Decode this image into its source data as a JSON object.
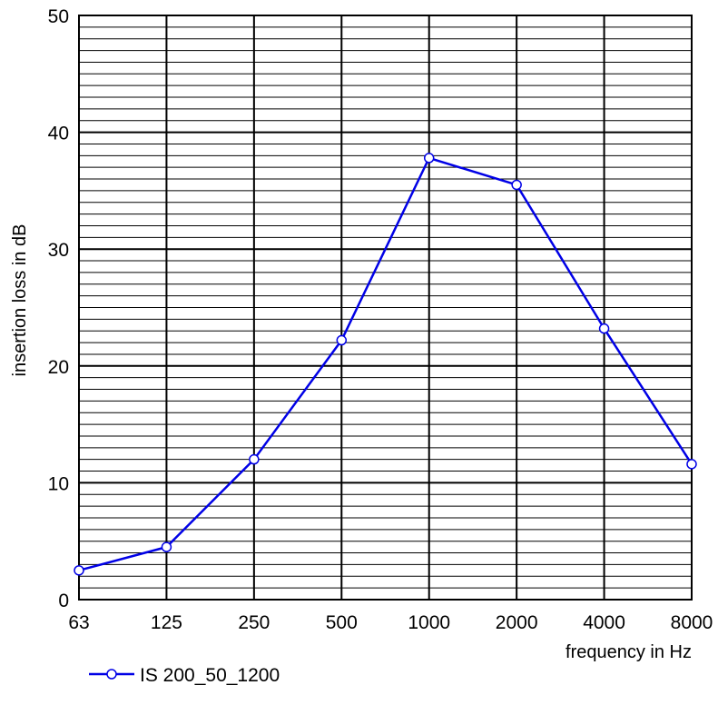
{
  "chart_data": {
    "type": "line",
    "title": "",
    "xlabel": "frequency in Hz",
    "ylabel": "insertion loss in dB",
    "categories": [
      "63",
      "125",
      "250",
      "500",
      "1000",
      "2000",
      "4000",
      "8000"
    ],
    "y_ticks": [
      "0",
      "10",
      "20",
      "30",
      "40",
      "50"
    ],
    "ylim": [
      0,
      50
    ],
    "x_scale": "log (octave bands)",
    "grid": {
      "major": true,
      "minor_y_step": 1
    },
    "legend_position": "bottom-left",
    "series": [
      {
        "name": "IS 200_50_1200",
        "color": "#0000e6",
        "marker": "open-circle",
        "values": [
          2.5,
          4.5,
          12.0,
          22.2,
          37.8,
          35.5,
          23.2,
          11.6
        ]
      }
    ]
  }
}
